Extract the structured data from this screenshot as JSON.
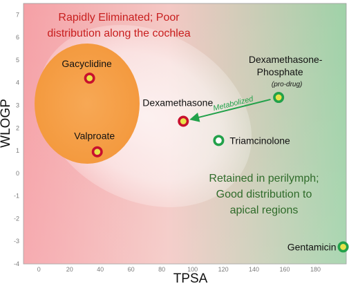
{
  "chart_data": {
    "type": "scatter",
    "title": "",
    "xlabel": "TPSA",
    "ylabel": "WLOGP",
    "xlim": [
      -10,
      200
    ],
    "ylim": [
      -4,
      7.5
    ],
    "x_ticks": [
      "0",
      "20",
      "40",
      "60",
      "80",
      "100",
      "120",
      "140",
      "160",
      "180"
    ],
    "y_ticks": [
      "-4",
      "-3",
      "-2",
      "-1",
      "0",
      "1",
      "2",
      "3",
      "4",
      "5",
      "6",
      "7"
    ],
    "grid": false,
    "background": {
      "left_color": "#f5a0a6",
      "right_color": "#9fd2a8"
    },
    "points": [
      {
        "name": "Gacycline",
        "label": "Gacyclidine",
        "x": 33,
        "y": 4.2,
        "style": "red-ring"
      },
      {
        "name": "Valproate",
        "label": "Valproate",
        "x": 38,
        "y": 0.95,
        "style": "red-ring"
      },
      {
        "name": "Dexamethasone",
        "label": "Dexamethasone",
        "x": 94,
        "y": 2.3,
        "style": "red-ring"
      },
      {
        "name": "Dexamethasone-Phosphate",
        "label": "Dexamethasone-",
        "label2": "Phosphate",
        "sublabel": "(pro-drug)",
        "x": 156,
        "y": 3.35,
        "style": "green-yellow"
      },
      {
        "name": "Triamcinolone",
        "label": "Triamcinolone",
        "x": 117,
        "y": 1.45,
        "style": "green-ring"
      },
      {
        "name": "Gentamicin",
        "label": "Gentamicin",
        "x": 198,
        "y": -3.25,
        "style": "green-yellow"
      }
    ],
    "annotations": {
      "red_region_line1": "Rapidly Eliminated; Poor",
      "red_region_line2": "distribution along the cochlea",
      "green_region_line1": "Retained in perilymph;",
      "green_region_line2": "Good distribution to",
      "green_region_line3": "apical regions",
      "arrow_label": "Metabolized"
    },
    "colors": {
      "red_ring": "#c8102e",
      "green_ring": "#22a14a",
      "yellow_fill": "#e8e34a",
      "orange_ellipse": "#f6a24a",
      "white_ellipse": "#ffffff",
      "red_text": "#c81e1e",
      "green_text": "#2f6b2a",
      "arrow": "#22a14a"
    }
  }
}
